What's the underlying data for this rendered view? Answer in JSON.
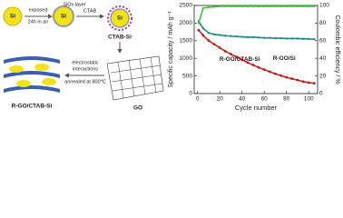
{
  "diagram": {
    "si_label": "Si",
    "step1_top": "exposed",
    "step1_bottom": "24h in air",
    "layer_label": "SiOx layer",
    "oxidized_label": "Si",
    "step2_label": "CTAB",
    "ctab_si_core": "Si",
    "ctab_si_label": "CTAB-Si",
    "go_label": "GO",
    "step3_line1": "electrostatic",
    "step3_line2": "interactions",
    "step3_line3": "annealed at 800℃",
    "product_label": "R-GO/CTAB-Si"
  },
  "chart_data": {
    "type": "line",
    "x_label": "Cycle number",
    "y_label": "Specific capacity / mAh g⁻¹",
    "y2_label": "Coulombic efficiency / %",
    "x": [
      1,
      5,
      10,
      15,
      20,
      25,
      30,
      35,
      40,
      45,
      50,
      55,
      60,
      65,
      70,
      75,
      80,
      85,
      90,
      95,
      100,
      105
    ],
    "series": [
      {
        "name": "R-GO/CTAB-Si",
        "color": "#1f8a8a",
        "values": [
          2050,
          1850,
          1720,
          1680,
          1660,
          1640,
          1630,
          1620,
          1610,
          1600,
          1600,
          1590,
          1580,
          1580,
          1570,
          1570,
          1560,
          1560,
          1560,
          1550,
          1550,
          1540
        ]
      },
      {
        "name": "R-GO/Si",
        "color": "#e0201c",
        "values": [
          1800,
          1650,
          1500,
          1400,
          1300,
          1200,
          1120,
          1040,
          960,
          880,
          810,
          740,
          680,
          620,
          560,
          510,
          460,
          420,
          380,
          340,
          310,
          290
        ]
      },
      {
        "name": "Coulombic efficiency",
        "color": "#3cc43c",
        "axis": "y2",
        "values": [
          80,
          97,
          98,
          98.5,
          99,
          99,
          99,
          99,
          99,
          99,
          99,
          99,
          99,
          99,
          99,
          99,
          99,
          99,
          99,
          99,
          99,
          99
        ]
      }
    ],
    "xlim": [
      -3,
      108
    ],
    "xticks": [
      0,
      20,
      40,
      60,
      80,
      100
    ],
    "ylim": [
      0,
      2500
    ],
    "yticks": [
      0,
      500,
      1000,
      1500,
      2000,
      2500
    ],
    "y2lim": [
      0,
      100
    ],
    "y2ticks": [
      0,
      20,
      40,
      60,
      80,
      100
    ]
  }
}
